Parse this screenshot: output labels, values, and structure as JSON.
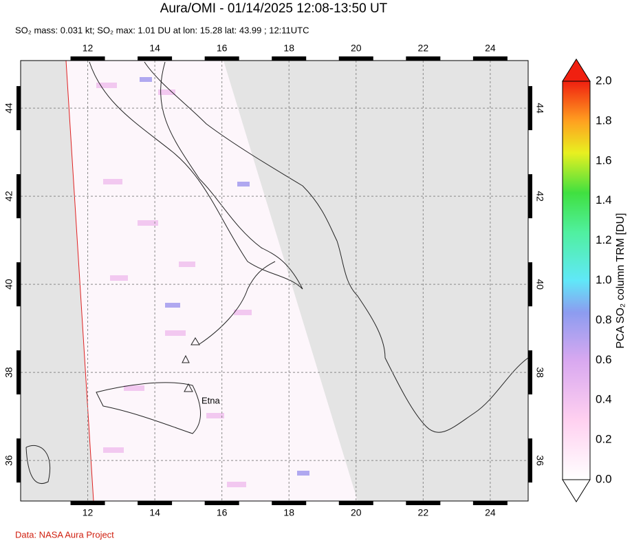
{
  "title": "Aura/OMI - 01/14/2025 12:08-13:50 UT",
  "subtitle": "SO₂ mass: 0.031 kt; SO₂ max: 1.01 DU at lon: 15.28 lat: 43.99 ; 12:11UTC",
  "map": {
    "xlim": [
      10,
      25.13
    ],
    "ylim": [
      35.08,
      45.08
    ],
    "xticks": [
      12,
      14,
      16,
      18,
      20,
      22,
      24
    ],
    "yticks": [
      36,
      38,
      40,
      42,
      44
    ],
    "volcano_label": "Etna"
  },
  "colorbar": {
    "label": "PCA SO₂ column TRM [DU]",
    "lim": [
      0,
      2
    ],
    "ticks": [
      {
        "value": 0,
        "label": "0.0"
      },
      {
        "value": 0.2,
        "label": "0.2"
      },
      {
        "value": 0.4,
        "label": "0.4"
      },
      {
        "value": 0.6,
        "label": "0.6"
      },
      {
        "value": 0.8,
        "label": "0.8"
      },
      {
        "value": 1.0,
        "label": "1.0"
      },
      {
        "value": 1.2,
        "label": "1.2"
      },
      {
        "value": 1.4,
        "label": "1.4"
      },
      {
        "value": 1.6,
        "label": "1.6"
      },
      {
        "value": 1.8,
        "label": "1.8"
      },
      {
        "value": 2.0,
        "label": "2.0"
      }
    ]
  },
  "credit": "Data: NASA Aura Project"
}
